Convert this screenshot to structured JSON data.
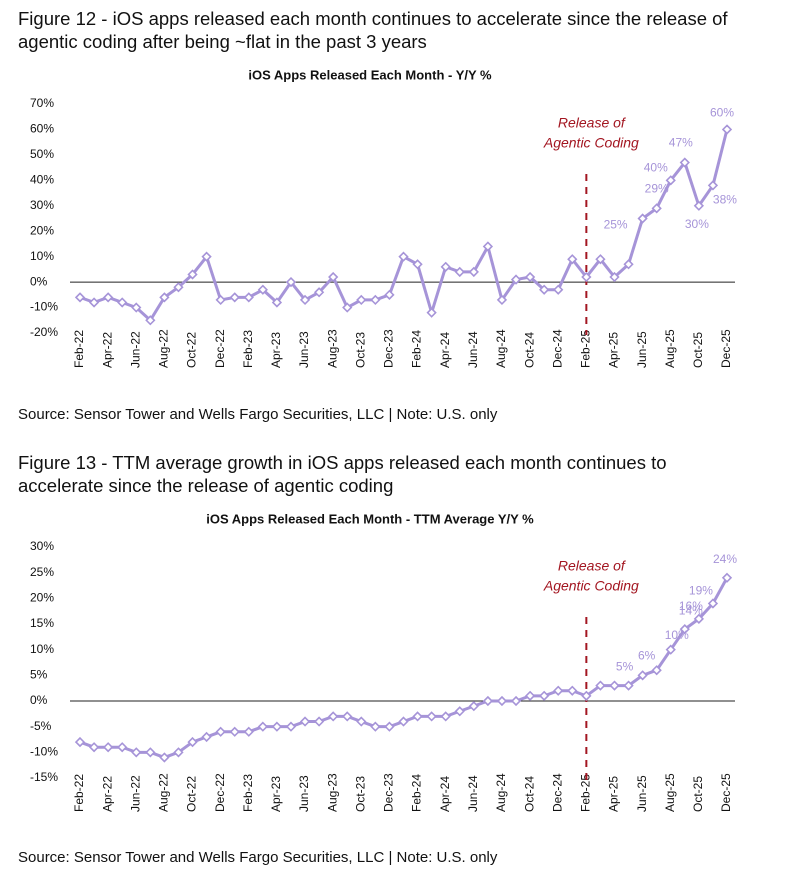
{
  "chart_data": [
    {
      "type": "line",
      "figure_title": [
        "Figure 12 - iOS apps released each month continues to accelerate since the release of",
        "agentic coding after being ~flat in the past 3 years"
      ],
      "title": "iOS Apps Released Each Month - Y/Y %",
      "source": "Source: Sensor Tower and Wells Fargo Securities, LLC | Note: U.S. only",
      "categories": [
        "Feb-22",
        null,
        "Apr-22",
        null,
        "Jun-22",
        null,
        "Aug-22",
        null,
        "Oct-22",
        null,
        "Dec-22",
        null,
        "Feb-23",
        null,
        "Apr-23",
        null,
        "Jun-23",
        null,
        "Aug-23",
        null,
        "Oct-23",
        null,
        "Dec-23",
        null,
        "Feb-24",
        null,
        "Apr-24",
        null,
        "Jun-24",
        null,
        "Aug-24",
        null,
        "Oct-24",
        null,
        "Dec-24",
        null,
        "Feb-25",
        null,
        "Apr-25",
        null,
        "Jun-25",
        null,
        "Aug-25",
        null,
        "Oct-25",
        null,
        "Dec-25"
      ],
      "series": [
        {
          "name": "Y/Y %",
          "color": "#a694d8",
          "values": [
            -6,
            -8,
            -6,
            -8,
            -10,
            -15,
            -6,
            -2,
            3,
            10,
            -7,
            -6,
            -6,
            -3,
            -8,
            0,
            -7,
            -4,
            2,
            -10,
            -7,
            -7,
            -5,
            10,
            7,
            -12,
            6,
            4,
            4,
            14,
            -7,
            1,
            2,
            -3,
            -3,
            9,
            2,
            9,
            2,
            7,
            25,
            29,
            40,
            47,
            30,
            38,
            60
          ],
          "value_labels": [
            null,
            null,
            null,
            null,
            null,
            null,
            null,
            null,
            null,
            null,
            null,
            null,
            null,
            null,
            null,
            null,
            null,
            null,
            null,
            null,
            null,
            null,
            null,
            null,
            null,
            null,
            null,
            null,
            null,
            null,
            null,
            null,
            null,
            null,
            null,
            null,
            null,
            null,
            null,
            null,
            "25%",
            "29%",
            "40%",
            "47%",
            "30%",
            "38%",
            "60%"
          ]
        }
      ],
      "ylim": [
        -20,
        70
      ],
      "yticks": [
        {
          "value": -20,
          "label": "-20%"
        },
        {
          "value": -10,
          "label": "-10%"
        },
        {
          "value": 0,
          "label": "0%"
        },
        {
          "value": 10,
          "label": "10%"
        },
        {
          "value": 20,
          "label": "20%"
        },
        {
          "value": 30,
          "label": "30%"
        },
        {
          "value": 40,
          "label": "40%"
        },
        {
          "value": 50,
          "label": "50%"
        },
        {
          "value": 60,
          "label": "60%"
        },
        {
          "value": 70,
          "label": "70%"
        }
      ],
      "annotation": {
        "text": [
          "Release of",
          "Agentic Coding"
        ],
        "x": "Feb-25",
        "color": "#a31621"
      },
      "grid": false
    },
    {
      "type": "line",
      "figure_title": [
        "Figure 13 - TTM average growth in iOS apps released each month continues to",
        "accelerate since the release of agentic coding"
      ],
      "title": "iOS Apps Released Each Month - TTM Average Y/Y %",
      "source": "Source: Sensor Tower and Wells Fargo Securities, LLC | Note: U.S. only",
      "categories": [
        "Feb-22",
        null,
        "Apr-22",
        null,
        "Jun-22",
        null,
        "Aug-22",
        null,
        "Oct-22",
        null,
        "Dec-22",
        null,
        "Feb-23",
        null,
        "Apr-23",
        null,
        "Jun-23",
        null,
        "Aug-23",
        null,
        "Oct-23",
        null,
        "Dec-23",
        null,
        "Feb-24",
        null,
        "Apr-24",
        null,
        "Jun-24",
        null,
        "Aug-24",
        null,
        "Oct-24",
        null,
        "Dec-24",
        null,
        "Feb-25",
        null,
        "Apr-25",
        null,
        "Jun-25",
        null,
        "Aug-25",
        null,
        "Oct-25",
        null,
        "Dec-25"
      ],
      "series": [
        {
          "name": "TTM Average Y/Y %",
          "color": "#a694d8",
          "values": [
            -8,
            -9,
            -9,
            -9,
            -10,
            -10,
            -11,
            -10,
            -8,
            -7,
            -6,
            -6,
            -6,
            -5,
            -5,
            -5,
            -4,
            -4,
            -3,
            -3,
            -4,
            -5,
            -5,
            -4,
            -3,
            -3,
            -3,
            -2,
            -1,
            0,
            0,
            0,
            1,
            1,
            2,
            2,
            1,
            3,
            3,
            3,
            5,
            6,
            10,
            14,
            16,
            19,
            24
          ],
          "value_labels": [
            null,
            null,
            null,
            null,
            null,
            null,
            null,
            null,
            null,
            null,
            null,
            null,
            null,
            null,
            null,
            null,
            null,
            null,
            null,
            null,
            null,
            null,
            null,
            null,
            null,
            null,
            null,
            null,
            null,
            null,
            null,
            null,
            null,
            null,
            null,
            null,
            null,
            null,
            null,
            null,
            "5%",
            "6%",
            "10%",
            "14%",
            "16%",
            "19%",
            "24%"
          ]
        }
      ],
      "ylim": [
        -15,
        30
      ],
      "yticks": [
        {
          "value": -15,
          "label": "-15%"
        },
        {
          "value": -10,
          "label": "-10%"
        },
        {
          "value": -5,
          "label": "-5%"
        },
        {
          "value": 0,
          "label": "0%"
        },
        {
          "value": 5,
          "label": "5%"
        },
        {
          "value": 10,
          "label": "10%"
        },
        {
          "value": 15,
          "label": "15%"
        },
        {
          "value": 20,
          "label": "20%"
        },
        {
          "value": 25,
          "label": "25%"
        },
        {
          "value": 30,
          "label": "30%"
        }
      ],
      "annotation": {
        "text": [
          "Release of",
          "Agentic Coding"
        ],
        "x": "Feb-25",
        "color": "#a31621"
      },
      "grid": false
    }
  ]
}
